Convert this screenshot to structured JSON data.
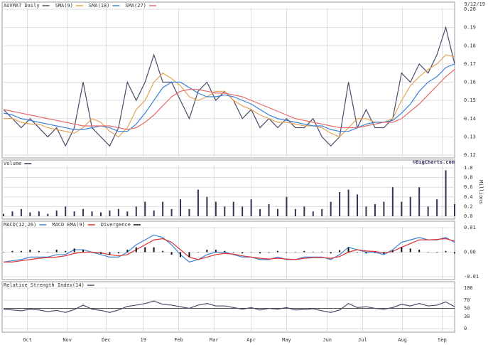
{
  "chart_data": [
    {
      "type": "line",
      "title": "AUVMAT Daily",
      "date": "9/12/19",
      "credit": "©BigCharts.com",
      "xlim": [
        0,
        51
      ],
      "ylim": [
        0.12,
        0.2
      ],
      "yticks": [
        0.12,
        0.13,
        0.14,
        0.15,
        0.16,
        0.17,
        0.18,
        0.19,
        {
          "value": 0.2,
          "label": "0.20"
        }
      ],
      "grid": true,
      "series": [
        {
          "color": "#4a4a6a",
          "values": [
            0.145,
            0.14,
            0.135,
            0.14,
            0.135,
            0.13,
            0.135,
            0.125,
            0.135,
            0.16,
            0.135,
            0.13,
            0.125,
            0.135,
            0.16,
            0.15,
            0.16,
            0.175,
            0.16,
            0.16,
            0.15,
            0.14,
            0.155,
            0.16,
            0.15,
            0.155,
            0.15,
            0.14,
            0.145,
            0.135,
            0.14,
            0.135,
            0.14,
            0.135,
            0.135,
            0.14,
            0.13,
            0.125,
            0.13,
            0.16,
            0.135,
            0.145,
            0.135,
            0.135,
            0.14,
            0.165,
            0.16,
            0.17,
            0.165,
            0.175,
            0.19,
            0.17
          ]
        },
        {
          "name": "SMA(9)",
          "color": "#e3a356",
          "values": [
            0.14,
            0.14,
            0.138,
            0.137,
            0.137,
            0.135,
            0.134,
            0.133,
            0.132,
            0.135,
            0.14,
            0.138,
            0.133,
            0.13,
            0.135,
            0.145,
            0.15,
            0.16,
            0.165,
            0.162,
            0.158,
            0.152,
            0.15,
            0.152,
            0.155,
            0.155,
            0.15,
            0.147,
            0.145,
            0.142,
            0.14,
            0.138,
            0.138,
            0.137,
            0.136,
            0.136,
            0.135,
            0.132,
            0.13,
            0.135,
            0.14,
            0.14,
            0.138,
            0.138,
            0.14,
            0.15,
            0.158,
            0.163,
            0.167,
            0.17,
            0.175,
            0.174
          ]
        },
        {
          "name": "SMA(18)",
          "color": "#3b82d6",
          "values": [
            0.143,
            0.142,
            0.14,
            0.139,
            0.138,
            0.137,
            0.136,
            0.135,
            0.134,
            0.134,
            0.135,
            0.136,
            0.135,
            0.133,
            0.133,
            0.137,
            0.143,
            0.15,
            0.157,
            0.16,
            0.16,
            0.157,
            0.154,
            0.152,
            0.152,
            0.153,
            0.152,
            0.15,
            0.148,
            0.145,
            0.142,
            0.14,
            0.139,
            0.138,
            0.137,
            0.136,
            0.136,
            0.134,
            0.133,
            0.133,
            0.135,
            0.137,
            0.138,
            0.138,
            0.139,
            0.143,
            0.148,
            0.155,
            0.16,
            0.163,
            0.168,
            0.17
          ]
        },
        {
          "name": "SMA(27)",
          "color": "#e36a6a",
          "values": [
            0.145,
            0.144,
            0.143,
            0.142,
            0.141,
            0.14,
            0.139,
            0.138,
            0.137,
            0.136,
            0.136,
            0.136,
            0.136,
            0.135,
            0.134,
            0.135,
            0.138,
            0.142,
            0.147,
            0.152,
            0.155,
            0.156,
            0.156,
            0.155,
            0.154,
            0.154,
            0.153,
            0.152,
            0.15,
            0.148,
            0.146,
            0.144,
            0.142,
            0.14,
            0.139,
            0.138,
            0.137,
            0.136,
            0.135,
            0.135,
            0.135,
            0.136,
            0.137,
            0.138,
            0.138,
            0.14,
            0.144,
            0.148,
            0.153,
            0.158,
            0.163,
            0.167
          ]
        }
      ]
    },
    {
      "type": "bar",
      "title": "Volume",
      "y_label": "Millions",
      "color": "#333355",
      "xlim": [
        0,
        51
      ],
      "ylim": [
        0,
        1
      ],
      "yticks": [
        {
          "value": 0,
          "label": "0.0"
        },
        0.2,
        0.4,
        0.6,
        0.8,
        {
          "value": 1,
          "label": "1.0"
        }
      ],
      "grid": true,
      "values": [
        0.05,
        0.1,
        0.15,
        0.08,
        0.1,
        0.05,
        0.12,
        0.2,
        0.1,
        0.15,
        0.1,
        0.08,
        0.12,
        0.15,
        0.1,
        0.2,
        0.3,
        0.12,
        0.3,
        0.15,
        0.35,
        0.15,
        0.55,
        0.4,
        0.3,
        0.2,
        0.3,
        0.2,
        0.35,
        0.15,
        0.25,
        0.15,
        0.4,
        0.15,
        0.2,
        0.1,
        0.15,
        0.3,
        0.5,
        0.55,
        0.45,
        0.2,
        0.25,
        0.3,
        0.6,
        0.3,
        0.4,
        0.6,
        0.2,
        0.35,
        0.95,
        0.25
      ]
    },
    {
      "type": "line",
      "xlim": [
        0,
        51
      ],
      "ylim": [
        -0.01,
        0.01
      ],
      "yticks": [
        {
          "value": -0.01,
          "label": "-0.01"
        },
        {
          "value": 0,
          "label": "0.00"
        },
        0.01
      ],
      "grid": true,
      "series": [
        {
          "name": "MACD(12,26)",
          "color": "#3b82d6",
          "values": [
            -0.004,
            -0.0035,
            -0.003,
            -0.002,
            -0.002,
            -0.002,
            -0.001,
            -0.001,
            0.001,
            0.001,
            0.0,
            -0.001,
            -0.002,
            -0.002,
            0.0,
            0.003,
            0.005,
            0.007,
            0.006,
            0.003,
            -0.001,
            -0.004,
            -0.003,
            -0.001,
            0.0,
            0.0,
            -0.001,
            -0.002,
            -0.002,
            -0.003,
            -0.003,
            -0.002,
            -0.003,
            -0.003,
            -0.002,
            -0.002,
            -0.002,
            -0.003,
            -0.001,
            0.002,
            0.001,
            0.0,
            0.0,
            -0.001,
            0.001,
            0.004,
            0.005,
            0.006,
            0.005,
            0.005,
            0.006,
            0.004
          ]
        },
        {
          "name": "MACD EMA(9)",
          "color": "#e03030",
          "values": [
            -0.004,
            -0.004,
            -0.0035,
            -0.003,
            -0.0025,
            -0.0022,
            -0.002,
            -0.0015,
            -0.0005,
            0.0,
            0.0,
            -0.0003,
            -0.001,
            -0.0015,
            -0.001,
            0.001,
            0.003,
            0.005,
            0.0055,
            0.004,
            0.001,
            -0.002,
            -0.003,
            -0.002,
            -0.001,
            -0.0005,
            -0.0008,
            -0.0015,
            -0.002,
            -0.0025,
            -0.0028,
            -0.0025,
            -0.0028,
            -0.003,
            -0.0025,
            -0.0022,
            -0.0022,
            -0.0025,
            -0.0018,
            0.0,
            0.001,
            0.0005,
            0.0003,
            -0.0003,
            0.0003,
            0.002,
            0.0035,
            0.005,
            0.005,
            0.0052,
            0.0055,
            0.0045
          ]
        },
        {
          "name": "Divergence",
          "color": "#111111",
          "style": "bar",
          "values": [
            0.0,
            0.0005,
            0.0005,
            0.001,
            0.0005,
            0.0,
            0.001,
            0.0005,
            0.0015,
            0.001,
            0.0,
            -0.0007,
            -0.001,
            -0.0005,
            0.001,
            0.002,
            0.002,
            0.002,
            0.0005,
            -0.001,
            -0.002,
            -0.002,
            0.0,
            0.001,
            0.001,
            0.0005,
            -0.0002,
            -0.0005,
            0.0,
            -0.0005,
            -0.0002,
            0.0005,
            -0.0002,
            0.0,
            0.0005,
            0.0002,
            0.0002,
            -0.0005,
            0.0008,
            0.002,
            0.0,
            -0.0005,
            -0.0003,
            -0.0007,
            0.0007,
            0.002,
            0.0015,
            0.001,
            0.0,
            -0.0002,
            0.0005,
            -0.0005
          ]
        }
      ]
    },
    {
      "type": "line",
      "title": "Relative Strength Index(14)",
      "xlim": [
        0,
        51
      ],
      "ylim": [
        0,
        100
      ],
      "yticks": [
        0,
        30,
        50,
        70,
        100
      ],
      "grid": true,
      "xticks": [
        {
          "value": 2.7,
          "label": "Oct"
        },
        {
          "value": 7.2,
          "label": "Nov"
        },
        {
          "value": 11.6,
          "label": "Dec"
        },
        {
          "value": 15.8,
          "label": "19"
        },
        {
          "value": 19.8,
          "label": "Feb"
        },
        {
          "value": 23.8,
          "label": "Mar"
        },
        {
          "value": 28.0,
          "label": "Apr"
        },
        {
          "value": 32.0,
          "label": "May"
        },
        {
          "value": 36.6,
          "label": "Jun"
        },
        {
          "value": 40.6,
          "label": "Jul"
        },
        {
          "value": 45.1,
          "label": "Aug"
        },
        {
          "value": 49.6,
          "label": "Sep"
        }
      ],
      "series": [
        {
          "color": "#4a4a6a",
          "values": [
            48,
            46,
            44,
            48,
            46,
            42,
            45,
            40,
            47,
            58,
            48,
            45,
            40,
            46,
            55,
            58,
            62,
            68,
            60,
            58,
            54,
            50,
            58,
            62,
            56,
            56,
            52,
            48,
            52,
            46,
            50,
            48,
            52,
            46,
            47,
            49,
            44,
            40,
            46,
            62,
            52,
            54,
            50,
            48,
            52,
            60,
            56,
            62,
            56,
            58,
            66,
            54
          ]
        }
      ]
    }
  ]
}
